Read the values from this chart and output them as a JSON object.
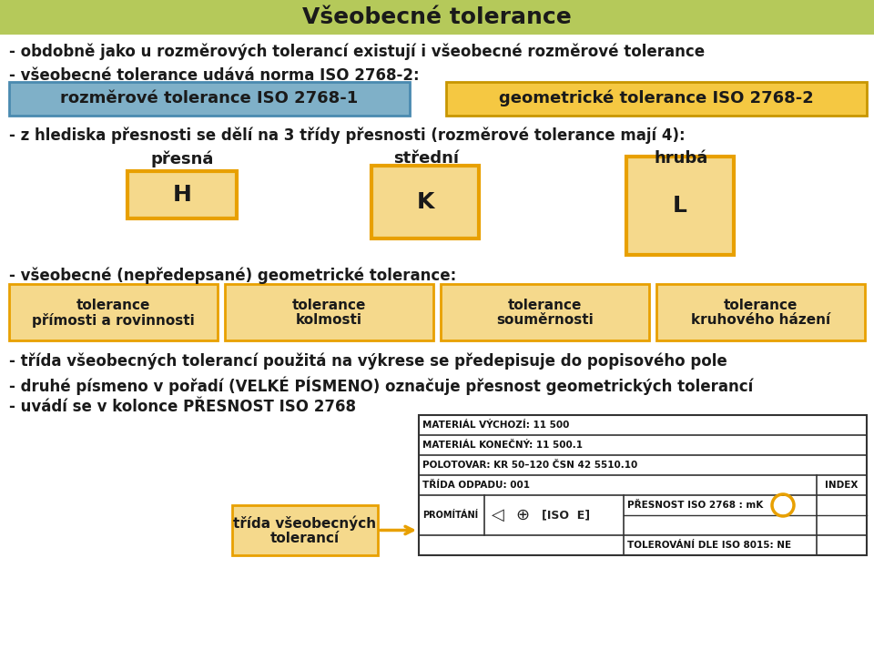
{
  "bg_color": "#ffffff",
  "title": "Všeobecné tolerance",
  "title_bg": "#b5c95a",
  "title_color": "#1a1a1a",
  "body_text_color": "#1a1a1a",
  "bullet1": "- obdobně jako u rozměrových tolerancí existují i všeobecné rozměrové tolerance",
  "bullet2": "- všeobecné tolerance udává norma ISO 2768-2:",
  "box1_text": "rozměrové tolerance ISO 2768-1",
  "box1_bg": "#7fb0c8",
  "box1_border": "#4a8ab0",
  "box2_text": "geometrické tolerance ISO 2768-2",
  "box2_bg": "#f5c842",
  "box2_border": "#c89600",
  "bullet3": "- z hlediska přesnosti se dělí na 3 třídy přesnosti (rozměrové tolerance mají 4):",
  "label1": "přesná",
  "label2": "střední",
  "label3": "hrubá",
  "box_H_text": "H",
  "box_K_text": "K",
  "box_L_text": "L",
  "box_fill": "#f5d98c",
  "box_border": "#e8a000",
  "bullet4": "- všeobecné (nepředepsané) geometrické tolerance:",
  "tol1_line1": "tolerance",
  "tol1_line2": "přímosti a rovinnosti",
  "tol2_line1": "tolerance",
  "tol2_line2": "kolmosti",
  "tol3_line1": "tolerance",
  "tol3_line2": "souměrnosti",
  "tol4_line1": "tolerance",
  "tol4_line2": "kruhového házení",
  "tol_box_fill": "#f5d98c",
  "tol_box_border": "#e8a000",
  "bullet5": "- třída všeobecných tolerancí použitá na výkrese se předepisuje do popisového pole",
  "bullet6": "- druhé písmeno v pořadí (VELKÉ PÍSMENO) označuje přesnost geometrických tolerancí",
  "bullet7": "- uvádí se v kolonce PŘESNOST ISO 2768",
  "arrow_box_fill": "#f5d98c",
  "arrow_box_border": "#e8a000",
  "arrow_box_line1": "třída všeobecných",
  "arrow_box_line2": "tolerancí",
  "arrow_color": "#e8a000",
  "table_lines": "#333333",
  "table_bg": "#ffffff",
  "table_text_color": "#111111",
  "table_row1": "MATERIÁL VÝCHOZÍ: 11 500",
  "table_row2": "MATERIÁL KONEČNÝ: 11 500.1",
  "table_row3": "POLOTOVAR: KR 50–120 ČSN 42 5510.10",
  "table_row4": "TŘÍDA ODPADU: 001",
  "table_row4b": "INDEX",
  "table_row5a": "PROMÍTÁNÍ",
  "table_row5b": "PŘESNOST ISO 2768 : mK",
  "table_row6": "TOLEROVÁNÍ DLE ISO 8015: NE",
  "circle_color": "#e8a000"
}
